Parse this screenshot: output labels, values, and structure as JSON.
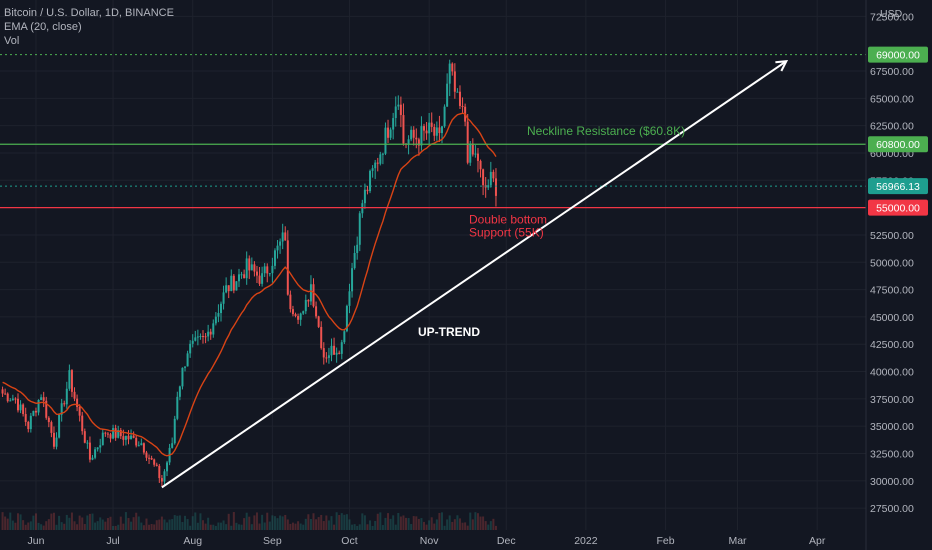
{
  "header": {
    "symbol_line": "Bitcoin / U.S. Dollar, 1D, BINANCE",
    "ema_line": "EMA (20, close)",
    "vol_line": "Vol"
  },
  "currency": "USD",
  "colors": {
    "background": "#131722",
    "up_candle": "#26a69a",
    "down_candle": "#ef5350",
    "ema": "#d84315",
    "resistance": "#4caf50",
    "support": "#f23645",
    "current_price": "#1e9e8f",
    "trendline": "#ffffff",
    "ath_line": "#4caf50"
  },
  "chart_data": {
    "type": "candlestick",
    "title": "Bitcoin / U.S. Dollar, 1D, BINANCE",
    "x_tick_labels": [
      "Jun",
      "Jul",
      "Aug",
      "Sep",
      "Oct",
      "Nov",
      "Dec",
      "2022",
      "Feb",
      "Mar",
      "Apr"
    ],
    "y_tick_labels": [
      "72500.00",
      "67500.00",
      "65000.00",
      "62500.00",
      "60000.00",
      "57500.00",
      "52500.00",
      "50000.00",
      "47500.00",
      "45000.00",
      "42500.00",
      "40000.00",
      "37500.00",
      "35000.00",
      "32500.00",
      "30000.00",
      "27500.00"
    ],
    "y_ticks": [
      72500,
      67500,
      65000,
      62500,
      60000,
      57500,
      52500,
      50000,
      47500,
      45000,
      42500,
      40000,
      37500,
      35000,
      32500,
      30000,
      27500
    ],
    "y_range": [
      25500,
      74000
    ],
    "x_range": [
      "2021-05-18",
      "2022-04-20"
    ],
    "price_tags": [
      {
        "label": "69000.00",
        "value": 69000,
        "color": "#4caf50",
        "dotted": true
      },
      {
        "label": "60800.00",
        "value": 60800,
        "color": "#4caf50",
        "dotted": false
      },
      {
        "label": "56966.13",
        "value": 56966.13,
        "color": "#1e9e8f",
        "dotted": true
      },
      {
        "label": "55000.00",
        "value": 55000,
        "color": "#f23645",
        "dotted": false
      }
    ],
    "anchors": [
      [
        "2021-05-19",
        38000
      ],
      [
        "2021-05-24",
        37500
      ],
      [
        "2021-05-29",
        35000
      ],
      [
        "2021-06-03",
        38000
      ],
      [
        "2021-06-08",
        33500
      ],
      [
        "2021-06-14",
        39500
      ],
      [
        "2021-06-22",
        32000
      ],
      [
        "2021-06-28",
        34500
      ],
      [
        "2021-07-06",
        34000
      ],
      [
        "2021-07-12",
        33500
      ],
      [
        "2021-07-20",
        30000
      ],
      [
        "2021-07-24",
        33500
      ],
      [
        "2021-07-26",
        38000
      ],
      [
        "2021-07-30",
        42000
      ],
      [
        "2021-08-06",
        43000
      ],
      [
        "2021-08-14",
        47500
      ],
      [
        "2021-08-22",
        49500
      ],
      [
        "2021-08-28",
        48500
      ],
      [
        "2021-09-06",
        52500
      ],
      [
        "2021-09-07",
        46500
      ],
      [
        "2021-09-13",
        45000
      ],
      [
        "2021-09-16",
        48000
      ],
      [
        "2021-09-21",
        41500
      ],
      [
        "2021-09-28",
        42500
      ],
      [
        "2021-10-01",
        48000
      ],
      [
        "2021-10-06",
        55500
      ],
      [
        "2021-10-15",
        61500
      ],
      [
        "2021-10-20",
        65500
      ],
      [
        "2021-10-22",
        61000
      ],
      [
        "2021-10-28",
        61500
      ],
      [
        "2021-11-02",
        62000
      ],
      [
        "2021-11-05",
        61000
      ],
      [
        "2021-11-09",
        67500
      ],
      [
        "2021-11-12",
        64500
      ],
      [
        "2021-11-15",
        63000
      ],
      [
        "2021-11-16",
        60000
      ],
      [
        "2021-11-20",
        59500
      ],
      [
        "2021-11-22",
        56500
      ],
      [
        "2021-11-25",
        57500
      ],
      [
        "2021-11-27",
        56966
      ]
    ],
    "ema_period": 20,
    "annotations": [
      {
        "text": "Neckline Resistance ($60.8K)",
        "color": "#4caf50"
      },
      {
        "text": "Double bottom",
        "color": "#f23645"
      },
      {
        "text": "Support (55K)",
        "color": "#f23645"
      },
      {
        "text": "UP-TREND",
        "color": "#ffffff"
      }
    ],
    "trendline": {
      "from": [
        "2021-07-20",
        29400
      ],
      "to": [
        "2022-03-20",
        68400
      ]
    }
  }
}
